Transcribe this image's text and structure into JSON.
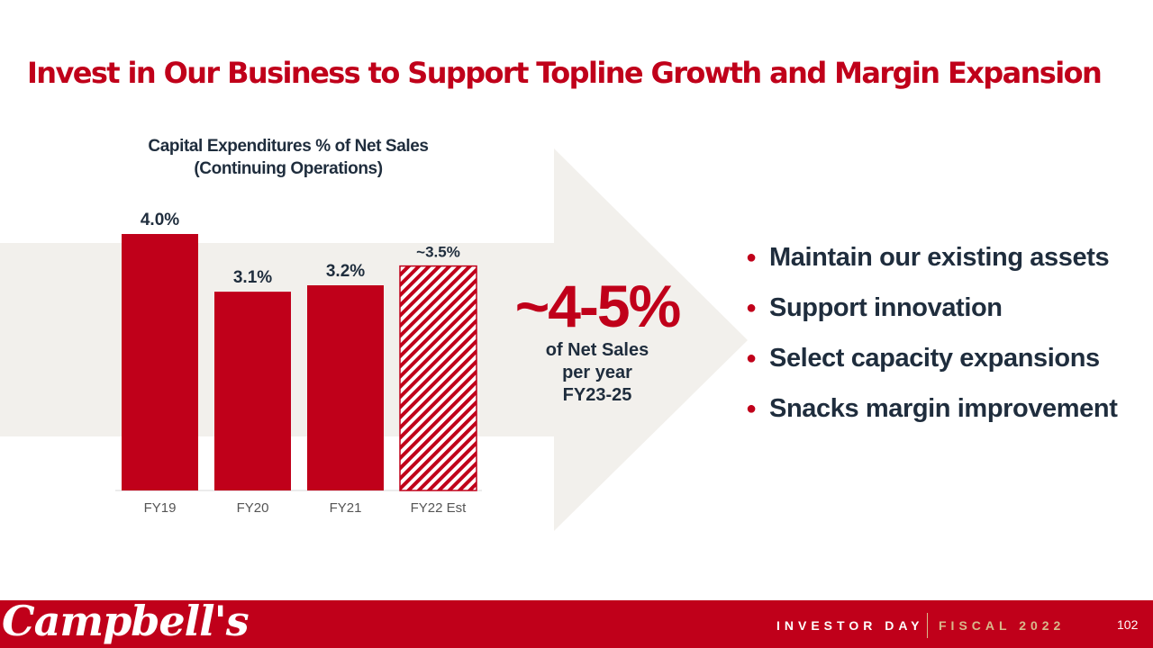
{
  "title": "Invest in Our Business to Support Topline Growth and Margin Expansion",
  "chart_data": {
    "type": "bar",
    "title_line1": "Capital Expenditures % of Net Sales",
    "title_line2": "(Continuing Operations)",
    "categories": [
      "FY19",
      "FY20",
      "FY21",
      "FY22 Est"
    ],
    "values": [
      4.0,
      3.1,
      3.2,
      3.5
    ],
    "data_labels": [
      "4.0%",
      "3.1%",
      "3.2%",
      "~3.5%"
    ],
    "estimated": [
      false,
      false,
      false,
      true
    ],
    "ylim": [
      0,
      4.0
    ],
    "xlabel": "",
    "ylabel": ""
  },
  "target": {
    "value": "~4-5%",
    "line1": "of Net Sales",
    "line2": "per year",
    "line3": "FY23-25"
  },
  "bullets": [
    "Maintain our existing assets",
    "Support innovation",
    "Select capacity expansions",
    "Snacks margin improvement"
  ],
  "footer": {
    "logo": "Campbell's",
    "event": "INVESTOR DAY",
    "fiscal": "FISCAL 2022",
    "page": "102"
  },
  "colors": {
    "brand_red": "#c0001a",
    "navy": "#1f2d3d",
    "arrow_bg": "#f2f0ec",
    "gold": "#d9b98c",
    "axis_label": "#555555"
  }
}
